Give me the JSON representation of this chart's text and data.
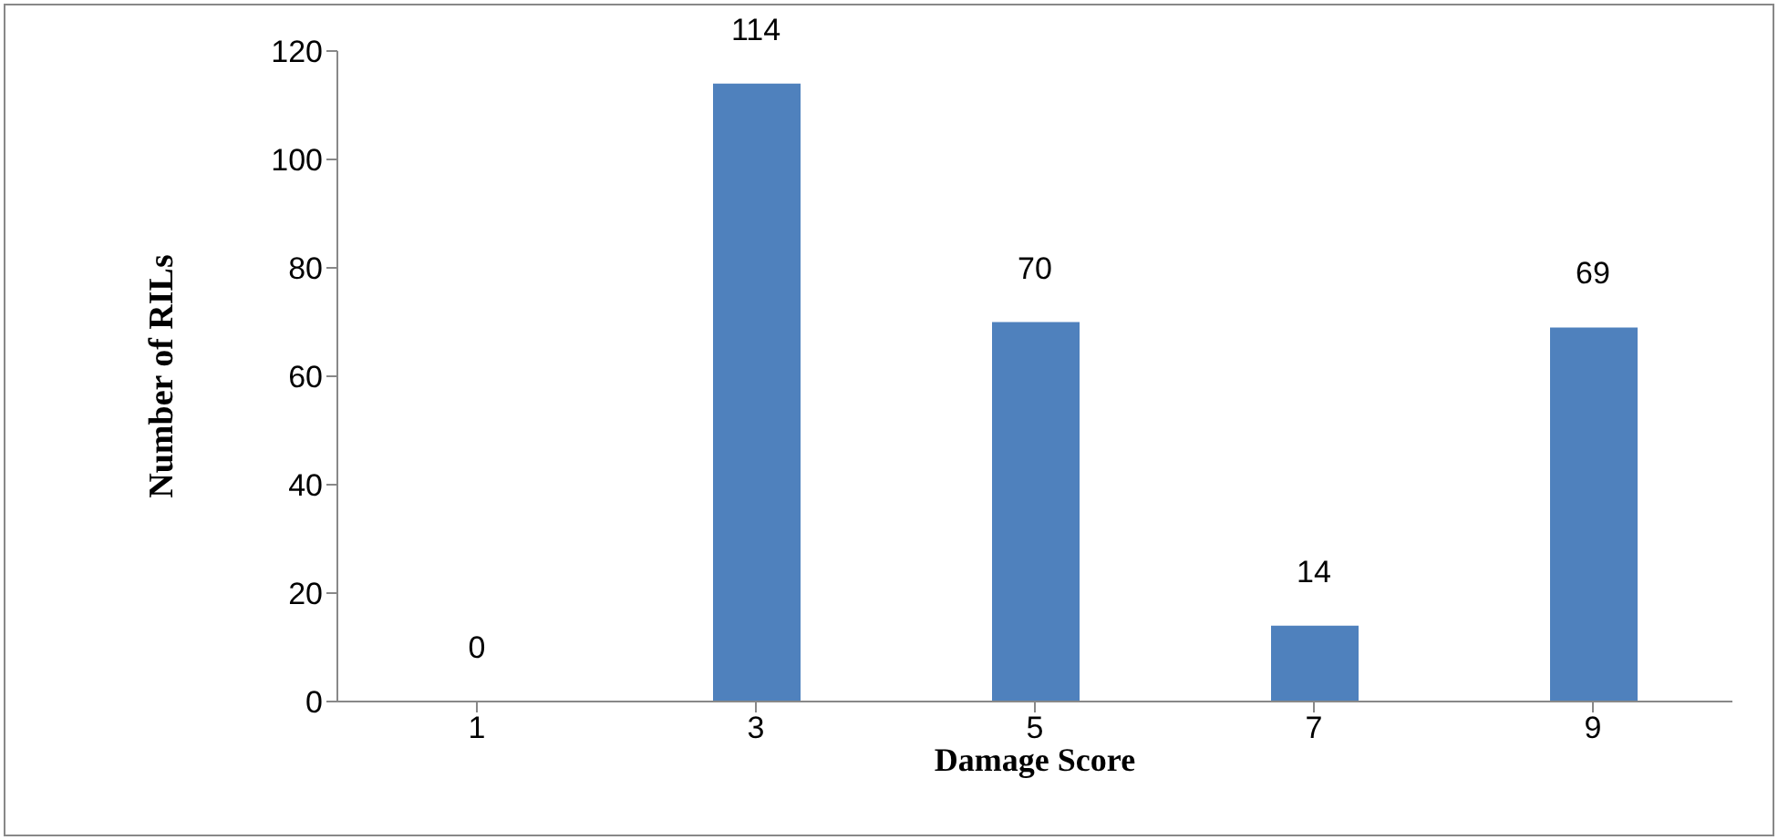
{
  "chart_data": {
    "type": "bar",
    "categories": [
      "1",
      "3",
      "5",
      "7",
      "9"
    ],
    "values": [
      0,
      114,
      70,
      14,
      69
    ],
    "color": "#4f81bd",
    "xlabel": "Damage Score",
    "ylabel": "Number of RILs",
    "ylim": [
      0,
      120
    ],
    "yticks": [
      0,
      20,
      40,
      60,
      80,
      100,
      120
    ],
    "data_labels": true,
    "grid": false
  }
}
